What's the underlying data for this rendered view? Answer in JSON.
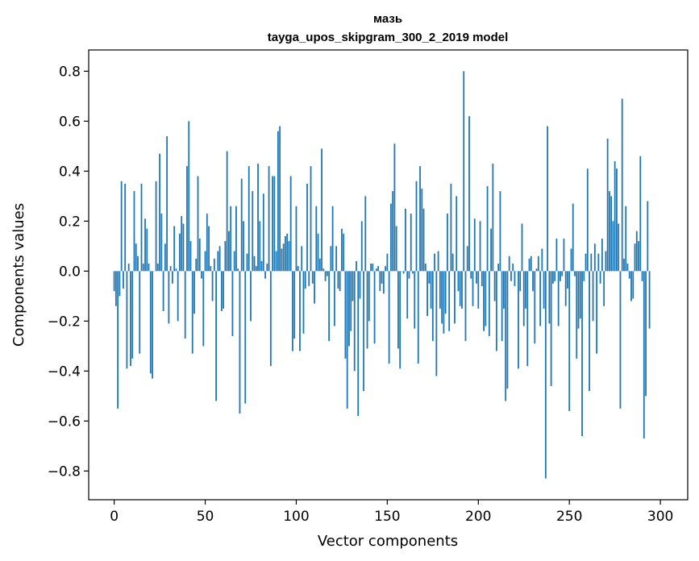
{
  "chart_data": {
    "type": "bar",
    "title": "мазь",
    "subtitle": "tayga_upos_skipgram_300_2_2019 model",
    "xlabel": "Vector components",
    "ylabel": "Components values",
    "xlim": [
      -14,
      315
    ],
    "ylim": [
      -0.915,
      0.885
    ],
    "xticks": [
      0,
      50,
      100,
      150,
      200,
      250,
      300
    ],
    "yticks": [
      -0.8,
      -0.6,
      -0.4,
      -0.2,
      0.0,
      0.2,
      0.4,
      0.6,
      0.8
    ],
    "ytick_labels": [
      "−0.8",
      "−0.6",
      "−0.4",
      "−0.2",
      "0.0",
      "0.2",
      "0.4",
      "0.6",
      "0.8"
    ],
    "bar_color": "#1f77b4",
    "values": [
      -0.08,
      -0.14,
      -0.55,
      -0.1,
      0.36,
      -0.07,
      0.35,
      -0.39,
      0.03,
      -0.38,
      -0.35,
      0.32,
      0.11,
      0.06,
      -0.33,
      0.35,
      0.03,
      0.21,
      0.17,
      0.03,
      -0.41,
      -0.43,
      0.0,
      0.36,
      0.03,
      0.47,
      0.23,
      -0.16,
      0.11,
      0.54,
      -0.21,
      0.02,
      -0.05,
      0.18,
      0.01,
      -0.2,
      0.15,
      0.22,
      0.19,
      -0.27,
      0.42,
      0.6,
      0.12,
      -0.33,
      -0.17,
      0.05,
      0.38,
      0.13,
      -0.03,
      -0.3,
      0.08,
      0.23,
      0.18,
      0.02,
      -0.12,
      0.05,
      -0.52,
      0.08,
      0.1,
      -0.16,
      -0.15,
      0.12,
      0.48,
      0.16,
      0.26,
      -0.26,
      0.08,
      0.26,
      0.01,
      -0.57,
      0.37,
      0.2,
      -0.53,
      0.07,
      0.42,
      -0.2,
      0.32,
      0.06,
      0.02,
      0.43,
      0.2,
      0.04,
      0.31,
      -0.03,
      0.03,
      0.42,
      -0.38,
      0.38,
      0.38,
      0.08,
      0.56,
      0.58,
      0.09,
      0.11,
      0.14,
      0.15,
      0.12,
      0.38,
      -0.32,
      -0.27,
      0.26,
      0.02,
      -0.32,
      0.1,
      -0.25,
      -0.07,
      0.35,
      -0.06,
      0.42,
      -0.05,
      -0.13,
      0.26,
      0.15,
      0.05,
      0.49,
      0.01,
      -0.04,
      -0.02,
      -0.28,
      0.1,
      0.26,
      -0.22,
      0.1,
      -0.07,
      -0.08,
      0.17,
      0.15,
      -0.35,
      -0.55,
      -0.3,
      -0.24,
      -0.12,
      -0.4,
      0.04,
      -0.58,
      -0.11,
      0.2,
      -0.48,
      0.3,
      -0.31,
      -0.2,
      0.03,
      0.03,
      -0.29,
      0.01,
      0.02,
      -0.08,
      -0.05,
      -0.09,
      0.02,
      0.07,
      -0.37,
      0.27,
      0.32,
      0.51,
      0.18,
      -0.31,
      -0.39,
      0.0,
      -0.01,
      0.25,
      -0.19,
      -0.03,
      0.23,
      -0.01,
      -0.23,
      0.36,
      -0.37,
      0.42,
      0.33,
      0.25,
      0.03,
      -0.18,
      -0.05,
      -0.15,
      -0.28,
      0.07,
      -0.42,
      0.08,
      -0.15,
      -0.21,
      -0.25,
      -0.17,
      0.23,
      -0.24,
      0.35,
      0.07,
      -0.21,
      0.3,
      -0.08,
      -0.14,
      -0.15,
      0.8,
      -0.28,
      0.1,
      0.62,
      -0.03,
      -0.14,
      0.21,
      -0.05,
      -0.15,
      0.2,
      -0.06,
      -0.24,
      -0.22,
      0.34,
      -0.26,
      0.17,
      0.43,
      -0.12,
      -0.32,
      0.03,
      0.32,
      -0.28,
      -0.15,
      -0.52,
      -0.47,
      0.06,
      -0.04,
      0.03,
      -0.06,
      0.0,
      -0.39,
      -0.08,
      0.19,
      -0.22,
      -0.15,
      -0.38,
      0.05,
      0.06,
      -0.08,
      -0.29,
      0.01,
      0.06,
      -0.22,
      0.09,
      -0.15,
      -0.83,
      0.58,
      -0.21,
      -0.46,
      -0.05,
      -0.04,
      0.13,
      -0.22,
      -0.04,
      -0.02,
      0.13,
      -0.14,
      -0.07,
      -0.56,
      0.09,
      0.27,
      -0.02,
      -0.35,
      -0.23,
      -0.19,
      -0.66,
      -0.04,
      0.07,
      0.41,
      -0.48,
      0.07,
      -0.2,
      0.11,
      -0.33,
      0.07,
      -0.05,
      0.13,
      -0.14,
      0.08,
      0.53,
      0.32,
      0.3,
      0.2,
      0.44,
      0.41,
      0.19,
      -0.55,
      0.69,
      0.05,
      0.26,
      0.03,
      -0.03,
      -0.12,
      -0.11,
      0.11,
      0.16,
      0.12,
      0.46,
      -0.04,
      -0.67,
      -0.5,
      0.28,
      -0.23
    ]
  }
}
